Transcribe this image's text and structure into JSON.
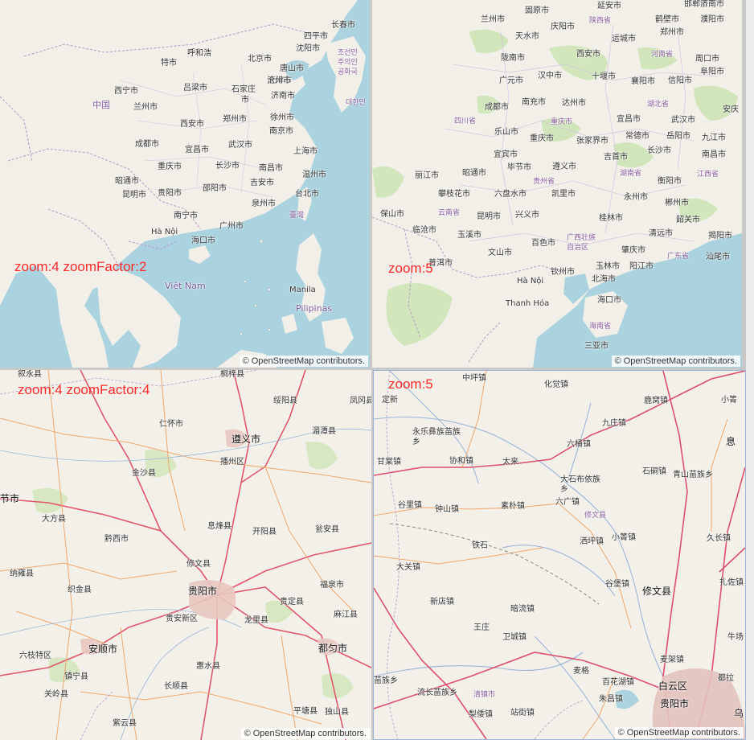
{
  "attribution": "© OpenStreetMap contributors.",
  "panes": {
    "tl": {
      "overlay": "zoom:4 zoomFactor:2",
      "labels": [
        "长春市",
        "四平市",
        "沈阳市",
        "呼和浩",
        "北京市",
        "唐山市",
        "特市",
        "天津市",
        "西宁市",
        "吕梁市",
        "石家庄",
        "沧州市",
        "济南市",
        "中国",
        "兰州市",
        "市",
        "郑州市",
        "徐州市",
        "南京市",
        "西安市",
        "成都市",
        "宜昌市",
        "武汉市",
        "上海市",
        "重庆市",
        "长沙市",
        "南昌市",
        "温州市",
        "昭通市",
        "邵阳市",
        "吉安市",
        "昆明市",
        "贵阳市",
        "台北市",
        "泉州市",
        "臺灣",
        "南宁市",
        "广州市",
        "Hà Nội",
        "海口市",
        "Việt Nam",
        "Manila",
        "Pilipinas",
        "대한민",
        "조선민",
        "주의인",
        "공화국"
      ]
    },
    "tr": {
      "overlay": "zoom:5",
      "labels": [
        "延安市",
        "邯郸市",
        "济南市",
        "兰州市",
        "固原市",
        "庆阳市",
        "鹤壁市",
        "濮阳市",
        "天水市",
        "陕西省",
        "运城市",
        "郑州市",
        "陇南市",
        "西安市",
        "河南省",
        "周口市",
        "广元市",
        "汉中市",
        "十堰市",
        "襄阳市",
        "信阳市",
        "阜阳市",
        "成都市",
        "南充市",
        "达州市",
        "湖北省",
        "安庆",
        "四川省",
        "重庆市",
        "宜昌市",
        "武汉市",
        "乐山市",
        "重庆市",
        "张家界市",
        "常德市",
        "岳阳市",
        "九江市",
        "宜宾市",
        "吉首市",
        "长沙市",
        "南昌市",
        "毕节市",
        "遵义市",
        "丽江市",
        "昭通市",
        "湖南省",
        "衡阳市",
        "江西省",
        "贵州省",
        "攀枝花市",
        "六盘水市",
        "凯里市",
        "永州市",
        "保山市",
        "云南省",
        "昆明市",
        "兴义市",
        "桂林市",
        "郴州市",
        "韶关市",
        "临沧市",
        "玉溪市",
        "广西壮族自治区",
        "清远市",
        "揭阳市",
        "百色市",
        "肇庆市",
        "汕尾市",
        "广东省",
        "普洱市",
        "玉林市",
        "阳江市",
        "文山市",
        "钦州市",
        "北海市",
        "Hà Nội",
        "Thanh Hóa",
        "海口市",
        "海南省",
        "三亚市"
      ]
    },
    "bl": {
      "overlay": "zoom:4 zoomFactor:4",
      "labels": [
        "桐梓县",
        "叙永县",
        "绥阳县",
        "凤冈县",
        "仁怀市",
        "遵义市",
        "湄潭县",
        "金沙县",
        "播州区",
        "节市",
        "大方县",
        "息烽县",
        "开阳县",
        "瓮安县",
        "黔西市",
        "修文县",
        "纳雍县",
        "织金县",
        "贵阳市",
        "福泉市",
        "贵定县",
        "贵安新区",
        "龙里县",
        "麻江县",
        "六枝特区",
        "安顺市",
        "镇宁县",
        "惠水县",
        "都匀市",
        "关岭县",
        "长顺县",
        "平塘县",
        "独山县",
        "紫云县"
      ]
    },
    "br": {
      "overlay": "zoom:5",
      "labels": [
        "中坪镇",
        "化觉镇",
        "定新",
        "鹿窝镇",
        "小箐",
        "九庄镇",
        "永乐彝族苗族乡",
        "息",
        "甘棠镇",
        "协和镇",
        "太来",
        "六桶镇",
        "大石布依族乡",
        "石硐镇",
        "青山苗族乡",
        "谷里镇",
        "钟山镇",
        "素朴镇",
        "六广镇",
        "修文县",
        "小箐镇",
        "久长镇",
        "铁石",
        "洒坪镇",
        "大关镇",
        "谷堡镇",
        "扎佐镇",
        "修文县",
        "新店镇",
        "暗流镇",
        "王庄",
        "卫城镇",
        "牛场",
        "麦架镇",
        "苗族乡",
        "麦格",
        "百花湖镇",
        "白云区",
        "都拉",
        "流长苗族乡",
        "清镇市",
        "朱昌镇",
        "梨倭镇",
        "站街镇",
        "贵阳市",
        "乌"
      ]
    }
  }
}
